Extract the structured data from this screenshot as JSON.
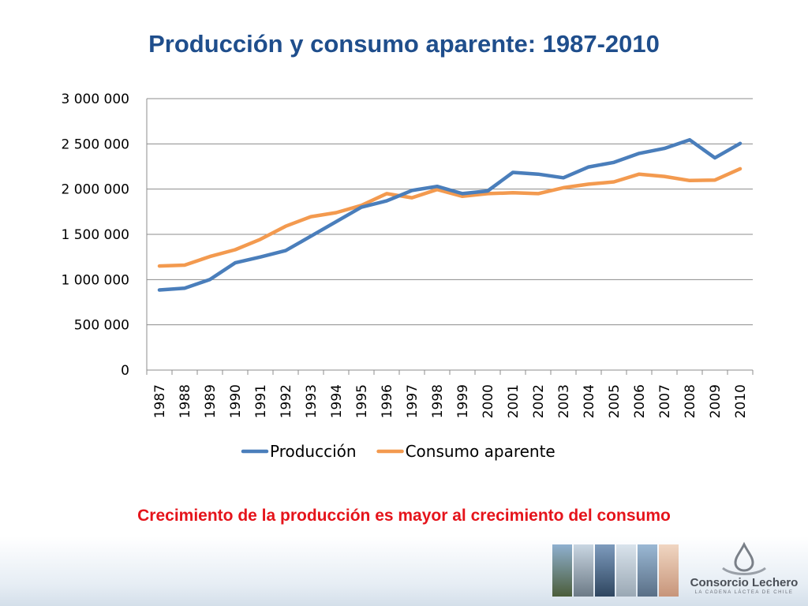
{
  "slide": {
    "title": "Producción y consumo aparente: 1987-2010",
    "annotation": "Crecimiento de la producción es mayor al crecimiento del consumo",
    "logo": {
      "name": "Consorcio Lechero",
      "tagline": "LA CADENA LÁCTEA DE CHILE"
    }
  },
  "chart_data": {
    "type": "line",
    "title": "Producción y consumo aparente: 1987-2010",
    "xlabel": "",
    "ylabel": "",
    "ylim": [
      0,
      3000000
    ],
    "yticks": [
      0,
      500000,
      1000000,
      1500000,
      2000000,
      2500000,
      3000000
    ],
    "ytick_labels": [
      "0",
      "500 000",
      "1 000 000",
      "1 500 000",
      "2 000 000",
      "2 500 000",
      "3 000 000"
    ],
    "grid": true,
    "legend": "bottom",
    "categories": [
      "1987",
      "1988",
      "1989",
      "1990",
      "1991",
      "1992",
      "1993",
      "1994",
      "1995",
      "1996",
      "1997",
      "1998",
      "1999",
      "2000",
      "2001",
      "2002",
      "2003",
      "2004",
      "2005",
      "2006",
      "2007",
      "2008",
      "2009",
      "2010"
    ],
    "series": [
      {
        "name": "Producción",
        "color": "#4a7ebb",
        "values": [
          885000,
          905000,
          1000000,
          1185000,
          1250000,
          1320000,
          1480000,
          1640000,
          1800000,
          1870000,
          1985000,
          2030000,
          1950000,
          1980000,
          2185000,
          2165000,
          2125000,
          2245000,
          2295000,
          2395000,
          2450000,
          2545000,
          2345000,
          2505000
        ]
      },
      {
        "name": "Consumo aparente",
        "color": "#f39a4f",
        "values": [
          1150000,
          1160000,
          1255000,
          1330000,
          1445000,
          1590000,
          1695000,
          1740000,
          1820000,
          1950000,
          1905000,
          1995000,
          1920000,
          1950000,
          1960000,
          1950000,
          2015000,
          2055000,
          2080000,
          2165000,
          2140000,
          2095000,
          2100000,
          2225000
        ]
      }
    ]
  }
}
